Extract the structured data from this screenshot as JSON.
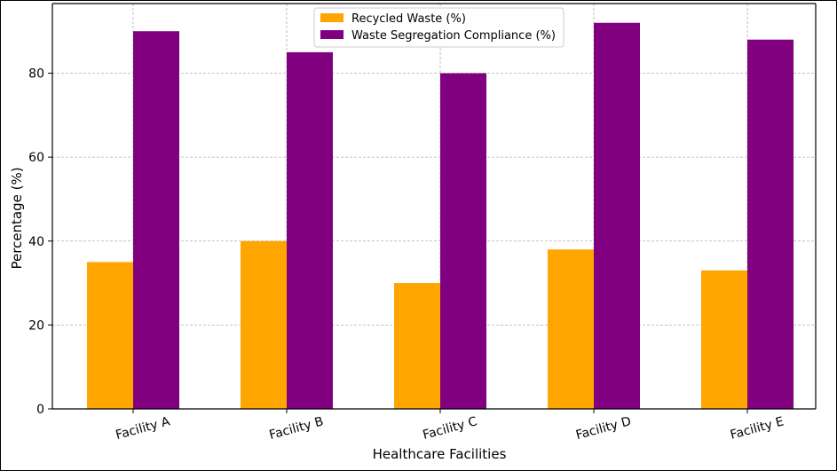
{
  "chart_data": {
    "type": "bar",
    "categories": [
      "Facility A",
      "Facility B",
      "Facility C",
      "Facility D",
      "Facility E"
    ],
    "series": [
      {
        "name": "Recycled Waste (%)",
        "values": [
          35,
          40,
          30,
          38,
          33
        ],
        "color": "#FFA500"
      },
      {
        "name": "Waste Segregation Compliance (%)",
        "values": [
          90,
          85,
          80,
          92,
          88
        ],
        "color": "#800080"
      }
    ],
    "title": "",
    "xlabel": "Healthcare Facilities",
    "ylabel": "Percentage (%)",
    "ylim": [
      0,
      96.6
    ],
    "yticks": [
      0,
      20,
      40,
      60,
      80
    ],
    "grid": true,
    "legend_position": "top-center"
  }
}
